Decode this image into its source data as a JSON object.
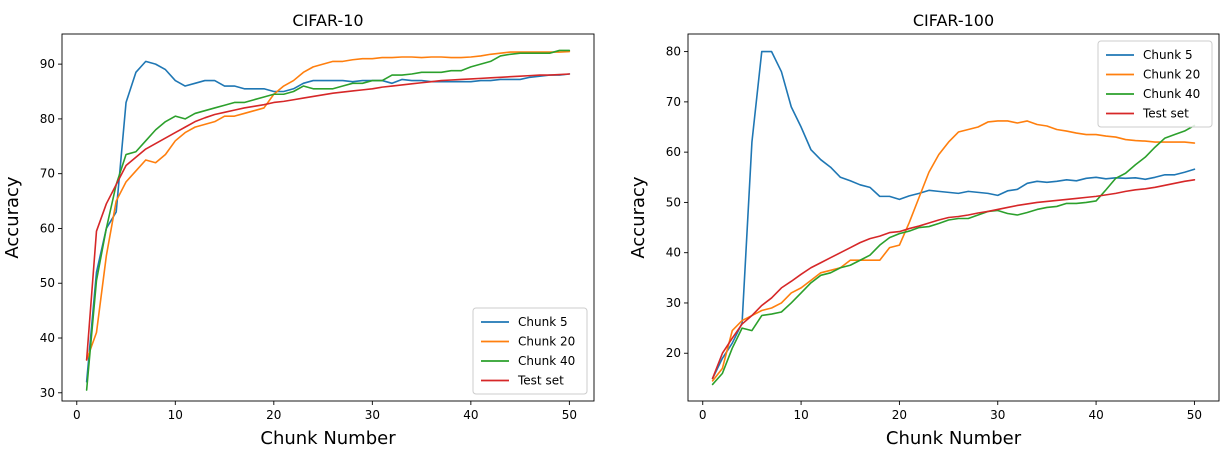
{
  "chart_data": [
    {
      "type": "line",
      "title": "CIFAR-10",
      "xlabel": "Chunk Number",
      "ylabel": "Accuracy",
      "xlim": [
        -1.5,
        52.5
      ],
      "ylim": [
        28.5,
        95.5
      ],
      "xticks": [
        0,
        10,
        20,
        30,
        40,
        50
      ],
      "yticks": [
        30,
        40,
        50,
        60,
        70,
        80,
        90
      ],
      "legend": "lower-right",
      "grid": false,
      "x": [
        1,
        2,
        3,
        4,
        5,
        6,
        7,
        8,
        9,
        10,
        11,
        12,
        13,
        14,
        15,
        16,
        17,
        18,
        19,
        20,
        21,
        22,
        23,
        24,
        25,
        26,
        27,
        28,
        29,
        30,
        31,
        32,
        33,
        34,
        35,
        36,
        37,
        38,
        39,
        40,
        41,
        42,
        43,
        44,
        45,
        46,
        47,
        48,
        49,
        50
      ],
      "series": [
        {
          "name": "Chunk 5",
          "color": "#1f77b4",
          "values": [
            32,
            52,
            60,
            63,
            83,
            88.5,
            90.5,
            90,
            89,
            87,
            86,
            86.5,
            87,
            87,
            86,
            86,
            85.5,
            85.5,
            85.5,
            85,
            85,
            85.5,
            86.5,
            87,
            87,
            87,
            87,
            86.8,
            87,
            87,
            87,
            86.5,
            87.2,
            87,
            87,
            86.8,
            86.8,
            86.8,
            86.8,
            86.8,
            87,
            87,
            87.2,
            87.2,
            87.2,
            87.6,
            87.8,
            88,
            88,
            88.2
          ]
        },
        {
          "name": "Chunk 20",
          "color": "#ff7f0e",
          "values": [
            36,
            41,
            55,
            65,
            68.5,
            70.5,
            72.5,
            72,
            73.5,
            76,
            77.5,
            78.5,
            79,
            79.5,
            80.5,
            80.5,
            81,
            81.5,
            82,
            84.5,
            86,
            87,
            88.5,
            89.5,
            90,
            90.5,
            90.5,
            90.8,
            91,
            91,
            91.2,
            91.2,
            91.3,
            91.3,
            91.2,
            91.3,
            91.3,
            91.2,
            91.2,
            91.3,
            91.5,
            91.8,
            92,
            92.2,
            92.2,
            92.2,
            92.2,
            92.2,
            92.2,
            92.3
          ]
        },
        {
          "name": "Chunk 40",
          "color": "#2ca02c",
          "values": [
            30.5,
            50.5,
            60,
            68,
            73.5,
            74,
            76,
            78,
            79.5,
            80.5,
            80,
            81,
            81.5,
            82,
            82.5,
            83,
            83,
            83.5,
            84,
            84.5,
            84.5,
            85,
            86,
            85.5,
            85.5,
            85.5,
            86,
            86.5,
            86.5,
            87,
            87,
            88,
            88,
            88.2,
            88.5,
            88.5,
            88.5,
            88.8,
            88.8,
            89.5,
            90,
            90.5,
            91.5,
            91.8,
            92,
            92,
            92,
            92,
            92.5,
            92.5
          ]
        },
        {
          "name": "Test set",
          "color": "#d62728",
          "values": [
            36,
            59.5,
            64.5,
            68,
            71.5,
            73,
            74.5,
            75.5,
            76.5,
            77.5,
            78.5,
            79.5,
            80.2,
            80.8,
            81.2,
            81.6,
            82,
            82.3,
            82.6,
            83,
            83.2,
            83.5,
            83.8,
            84.1,
            84.4,
            84.7,
            84.9,
            85.1,
            85.3,
            85.5,
            85.8,
            86,
            86.2,
            86.4,
            86.6,
            86.8,
            87,
            87.1,
            87.2,
            87.3,
            87.4,
            87.5,
            87.6,
            87.7,
            87.8,
            87.9,
            88,
            88,
            88.1,
            88.2
          ]
        }
      ]
    },
    {
      "type": "line",
      "title": "CIFAR-100",
      "xlabel": "Chunk Number",
      "ylabel": "Accuracy",
      "xlim": [
        -1.5,
        52.5
      ],
      "ylim": [
        10.5,
        83.5
      ],
      "xticks": [
        0,
        10,
        20,
        30,
        40,
        50
      ],
      "yticks": [
        20,
        30,
        40,
        50,
        60,
        70,
        80
      ],
      "legend": "upper-right",
      "grid": false,
      "x": [
        1,
        2,
        3,
        4,
        5,
        6,
        7,
        8,
        9,
        10,
        11,
        12,
        13,
        14,
        15,
        16,
        17,
        18,
        19,
        20,
        21,
        22,
        23,
        24,
        25,
        26,
        27,
        28,
        29,
        30,
        31,
        32,
        33,
        34,
        35,
        36,
        37,
        38,
        39,
        40,
        41,
        42,
        43,
        44,
        45,
        46,
        47,
        48,
        49,
        50
      ],
      "series": [
        {
          "name": "Chunk 5",
          "color": "#1f77b4",
          "values": [
            15,
            19,
            22,
            26,
            62,
            80,
            80,
            76,
            69,
            65,
            60.5,
            58.5,
            57,
            55,
            54.3,
            53.5,
            53,
            51.2,
            51.2,
            50.6,
            51.3,
            51.8,
            52.4,
            52.2,
            52,
            51.8,
            52.2,
            52,
            51.8,
            51.4,
            52.3,
            52.6,
            53.8,
            54.2,
            54,
            54.2,
            54.5,
            54.3,
            54.8,
            55,
            54.7,
            54.9,
            54.8,
            54.9,
            54.6,
            55,
            55.5,
            55.5,
            56,
            56.6
          ]
        },
        {
          "name": "Chunk 20",
          "color": "#ff7f0e",
          "values": [
            14.5,
            17,
            24.5,
            26.5,
            27.5,
            28.5,
            29,
            30,
            32,
            33,
            34.5,
            36,
            36.5,
            37,
            38.5,
            38.5,
            38.5,
            38.5,
            41,
            41.5,
            46,
            51,
            56,
            59.5,
            62,
            64,
            64.5,
            65,
            66,
            66.2,
            66.2,
            65.8,
            66.2,
            65.5,
            65.2,
            64.5,
            64.2,
            63.8,
            63.5,
            63.5,
            63.2,
            63,
            62.5,
            62.3,
            62.2,
            62,
            62,
            62,
            62,
            61.8
          ]
        },
        {
          "name": "Chunk 40",
          "color": "#2ca02c",
          "values": [
            13.8,
            16,
            21,
            25,
            24.5,
            27.5,
            27.8,
            28.2,
            30,
            32,
            34,
            35.5,
            36,
            37,
            37.5,
            38.5,
            39.5,
            41.5,
            43,
            43.8,
            44.3,
            45,
            45.2,
            45.8,
            46.5,
            46.8,
            46.8,
            47.5,
            48.2,
            48.4,
            47.8,
            47.5,
            48,
            48.6,
            49,
            49.2,
            49.8,
            49.8,
            50,
            50.3,
            52.5,
            54.8,
            55.8,
            57.5,
            59,
            61,
            62.8,
            63.5,
            64.2,
            65.3
          ]
        },
        {
          "name": "Test set",
          "color": "#d62728",
          "values": [
            15,
            20,
            23,
            25.8,
            27.5,
            29.5,
            31,
            33,
            34.3,
            35.7,
            37,
            38,
            39,
            40,
            41,
            42,
            42.8,
            43.3,
            44,
            44.2,
            44.8,
            45.3,
            45.9,
            46.5,
            47,
            47.2,
            47.5,
            47.9,
            48.2,
            48.6,
            49,
            49.4,
            49.7,
            50,
            50.2,
            50.4,
            50.6,
            50.8,
            51,
            51.2,
            51.5,
            51.8,
            52.2,
            52.5,
            52.7,
            53,
            53.4,
            53.8,
            54.2,
            54.5
          ]
        }
      ]
    }
  ]
}
